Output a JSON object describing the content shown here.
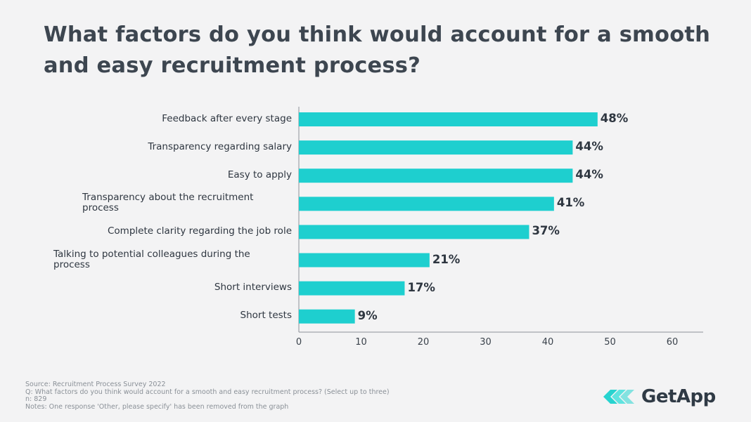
{
  "chart_data": {
    "type": "bar",
    "orientation": "horizontal",
    "title": "What factors do you think would account for a smooth and easy recruitment process?",
    "categories": [
      "Feedback after every stage",
      "Transparency regarding salary",
      "Easy to apply",
      "Transparency about the recruitment process",
      "Complete clarity regarding the job role",
      "Talking to potential colleagues during the process",
      "Short interviews",
      "Short tests"
    ],
    "category_lines": [
      [
        "Feedback after every stage"
      ],
      [
        "Transparency regarding salary"
      ],
      [
        "Easy to apply"
      ],
      [
        "Transparency about the recruitment",
        "process"
      ],
      [
        "Complete clarity regarding the job role"
      ],
      [
        "Talking to potential colleagues during the",
        "process"
      ],
      [
        "Short interviews"
      ],
      [
        "Short tests"
      ]
    ],
    "values": [
      48,
      44,
      44,
      41,
      37,
      21,
      17,
      9
    ],
    "value_labels": [
      "48%",
      "44%",
      "44%",
      "41%",
      "37%",
      "21%",
      "17%",
      "9%"
    ],
    "xlim": [
      0,
      60
    ],
    "xticks": [
      0,
      10,
      20,
      30,
      40,
      50,
      60
    ],
    "bar_color": "#1ecfcf",
    "grid": false
  },
  "notes": {
    "source": "Source: Recruitment Process Survey 2022",
    "question": "Q: What factors do you think would account for a smooth and easy recruitment process? (Select up to three)",
    "n": "n: 829",
    "remark": "Notes: One response 'Other, please specify' has been removed from the graph"
  },
  "logo": {
    "text": "GetApp",
    "icon": "getapp-chevrons-icon",
    "accent": "#27d3cf"
  }
}
